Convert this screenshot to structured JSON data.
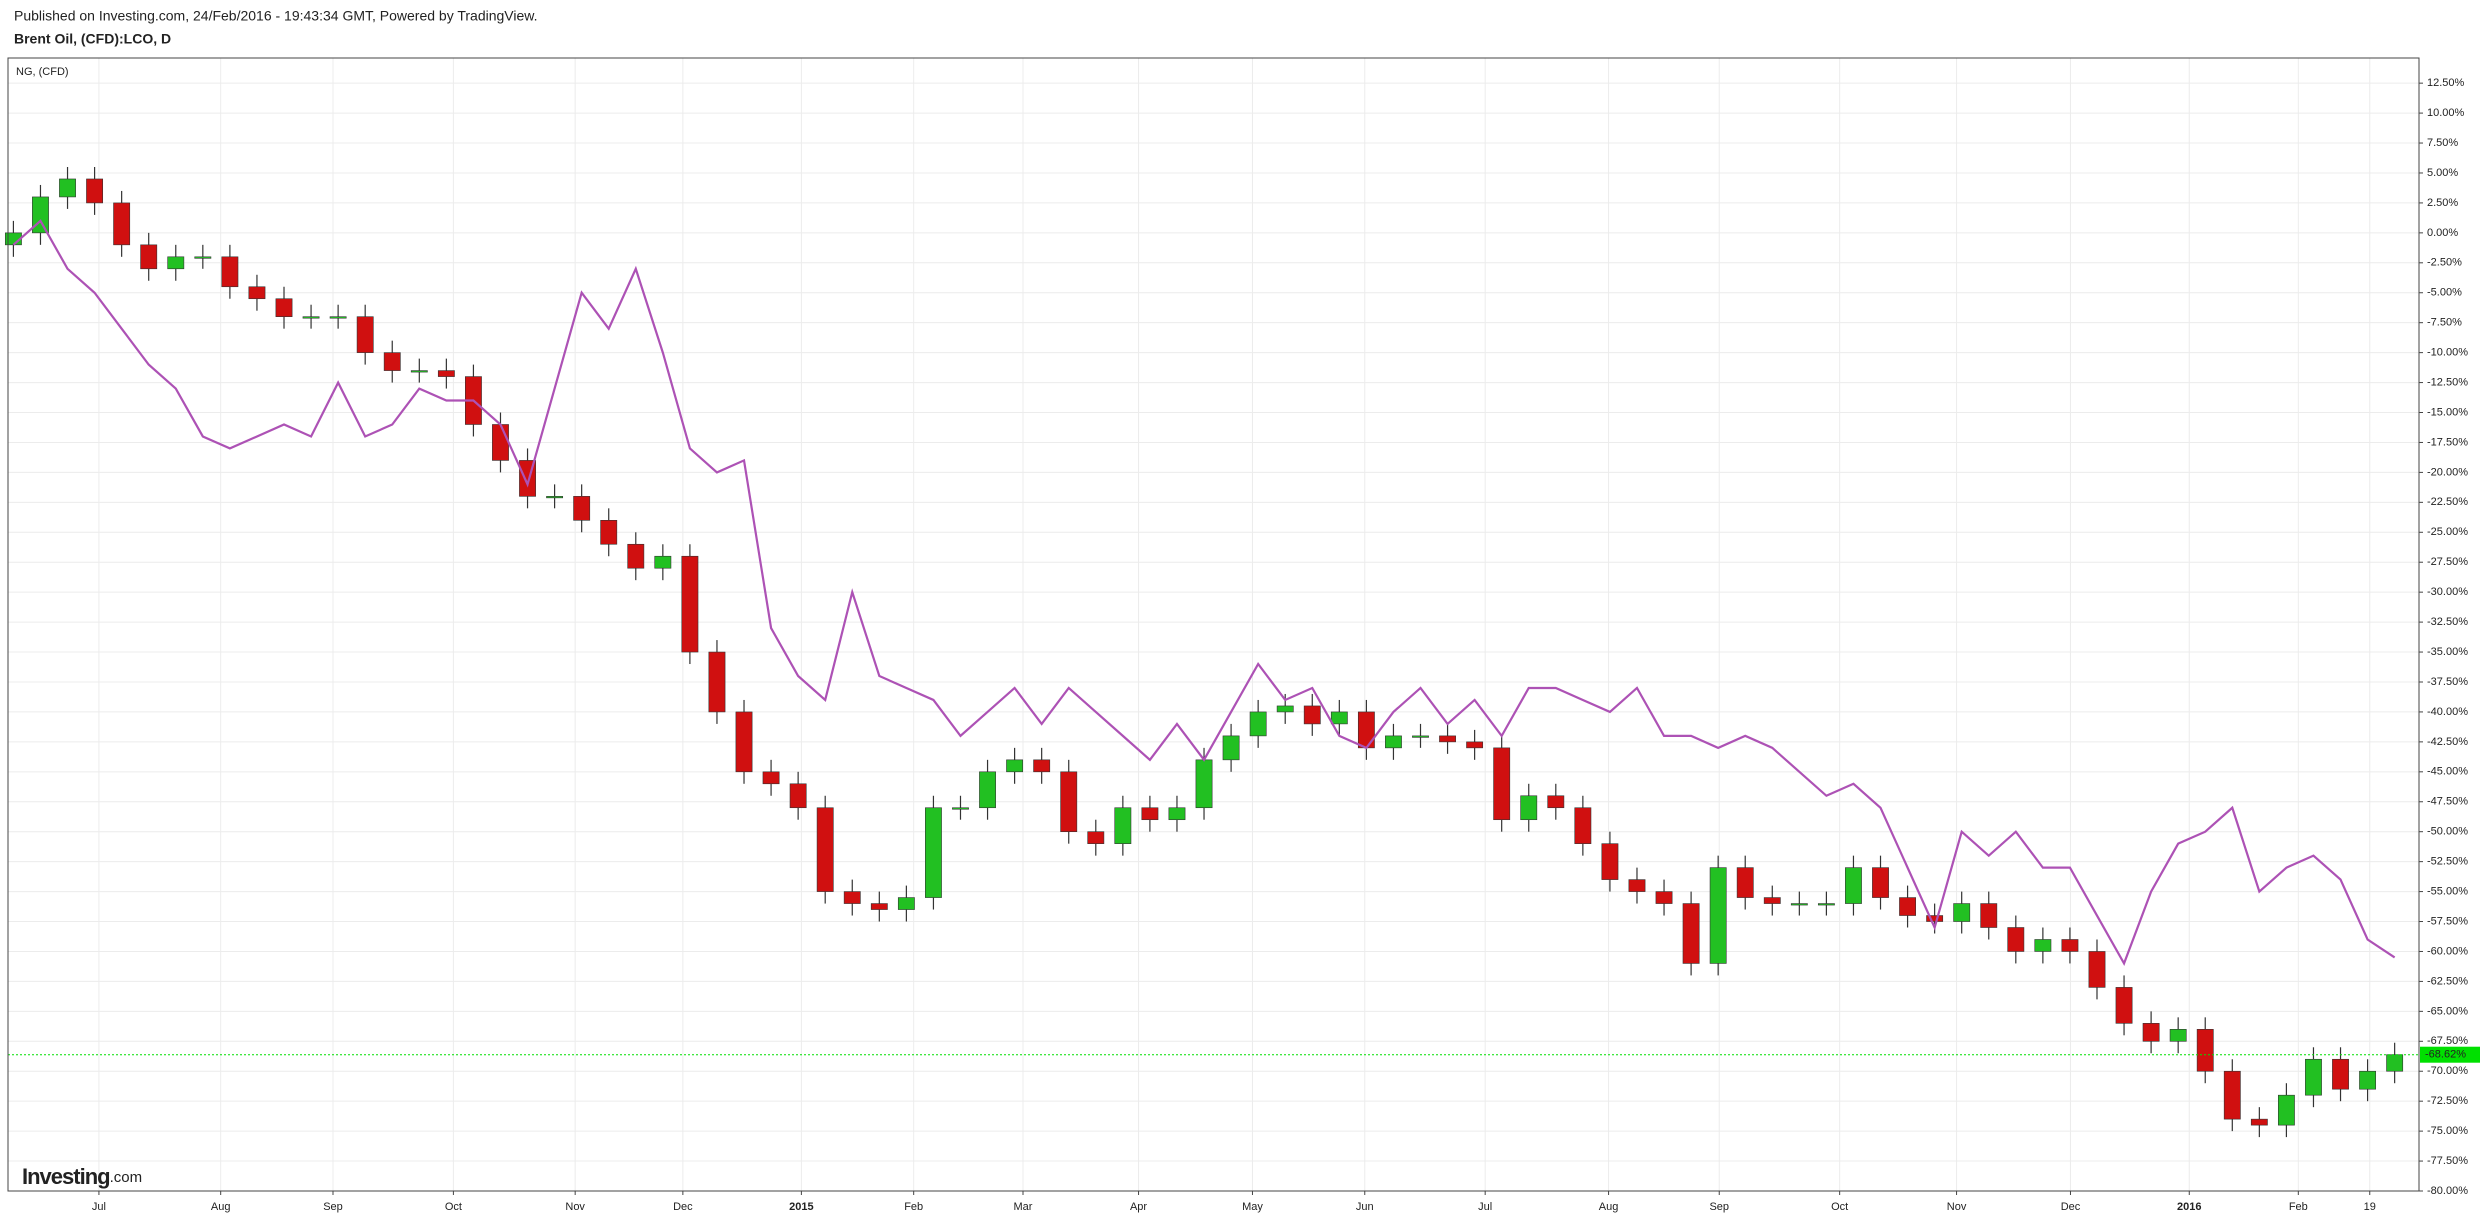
{
  "chart_data": {
    "type": "candlestick",
    "publisher_note": "Published on Investing.com, 24/Feb/2016 - 19:43:34 GMT, Powered by TradingView.",
    "logo_brand": "Investing",
    "logo_suffix": ".com",
    "x": [
      0,
      1,
      2,
      3,
      4,
      5,
      6,
      7,
      8,
      9,
      10,
      11,
      12,
      13,
      14,
      15,
      16,
      17,
      18,
      19,
      20,
      21,
      22,
      23,
      24,
      25,
      26,
      27,
      28,
      29,
      30,
      31,
      32,
      33,
      34,
      35,
      36,
      37,
      38,
      39,
      40,
      41,
      42,
      43,
      44,
      45,
      46,
      47,
      48,
      49,
      50,
      51,
      52,
      53,
      54,
      55,
      56,
      57,
      58,
      59,
      60,
      61,
      62,
      63,
      64,
      65,
      66,
      67,
      68,
      69,
      70,
      71,
      72,
      73,
      74,
      75,
      76,
      77,
      78,
      79,
      80,
      81,
      82,
      83,
      84,
      85,
      86,
      87,
      88
    ],
    "xlim": [
      -0.2,
      88.9
    ],
    "xticks": [
      {
        "value": 3.16,
        "label": "Jul"
      },
      {
        "value": 7.66,
        "label": "Aug"
      },
      {
        "value": 11.81,
        "label": "Sep"
      },
      {
        "value": 16.26,
        "label": "Oct"
      },
      {
        "value": 20.76,
        "label": "Nov"
      },
      {
        "value": 24.74,
        "label": "Dec"
      },
      {
        "value": 29.12,
        "label": "2015"
      },
      {
        "value": 33.27,
        "label": "Feb"
      },
      {
        "value": 37.31,
        "label": "Mar"
      },
      {
        "value": 41.58,
        "label": "Apr"
      },
      {
        "value": 45.79,
        "label": "May"
      },
      {
        "value": 49.94,
        "label": "Jun"
      },
      {
        "value": 54.39,
        "label": "Jul"
      },
      {
        "value": 58.95,
        "label": "Aug"
      },
      {
        "value": 63.04,
        "label": "Sep"
      },
      {
        "value": 67.49,
        "label": "Oct"
      },
      {
        "value": 71.81,
        "label": "Nov"
      },
      {
        "value": 76.02,
        "label": "Dec"
      },
      {
        "value": 80.41,
        "label": "2016"
      },
      {
        "value": 84.44,
        "label": "Feb"
      },
      {
        "value": 87.08,
        "label": "19"
      }
    ],
    "ylim": [
      -80,
      14.6
    ],
    "yticks": [
      {
        "value": 12.5,
        "label": "12.50%"
      },
      {
        "value": 10,
        "label": "10.00%"
      },
      {
        "value": 7.5,
        "label": "7.50%"
      },
      {
        "value": 5,
        "label": "5.00%"
      },
      {
        "value": 2.5,
        "label": "2.50%"
      },
      {
        "value": 0,
        "label": "0.00%"
      },
      {
        "value": -2.5,
        "label": "-2.50%"
      },
      {
        "value": -5,
        "label": "-5.00%"
      },
      {
        "value": -7.5,
        "label": "-7.50%"
      },
      {
        "value": -10,
        "label": "-10.00%"
      },
      {
        "value": -12.5,
        "label": "-12.50%"
      },
      {
        "value": -15,
        "label": "-15.00%"
      },
      {
        "value": -17.5,
        "label": "-17.50%"
      },
      {
        "value": -20,
        "label": "-20.00%"
      },
      {
        "value": -22.5,
        "label": "-22.50%"
      },
      {
        "value": -25,
        "label": "-25.00%"
      },
      {
        "value": -27.5,
        "label": "-27.50%"
      },
      {
        "value": -30,
        "label": "-30.00%"
      },
      {
        "value": -32.5,
        "label": "-32.50%"
      },
      {
        "value": -35,
        "label": "-35.00%"
      },
      {
        "value": -37.5,
        "label": "-37.50%"
      },
      {
        "value": -40,
        "label": "-40.00%"
      },
      {
        "value": -42.5,
        "label": "-42.50%"
      },
      {
        "value": -45,
        "label": "-45.00%"
      },
      {
        "value": -47.5,
        "label": "-47.50%"
      },
      {
        "value": -50,
        "label": "-50.00%"
      },
      {
        "value": -52.5,
        "label": "-52.50%"
      },
      {
        "value": -55,
        "label": "-55.00%"
      },
      {
        "value": -57.5,
        "label": "-57.50%"
      },
      {
        "value": -60,
        "label": "-60.00%"
      },
      {
        "value": -62.5,
        "label": "-62.50%"
      },
      {
        "value": -65,
        "label": "-65.00%"
      },
      {
        "value": -67.5,
        "label": "-67.50%"
      },
      {
        "value": -70,
        "label": "-70.00%"
      },
      {
        "value": -72.5,
        "label": "-72.50%"
      },
      {
        "value": -75,
        "label": "-75.00%"
      },
      {
        "value": -77.5,
        "label": "-77.50%"
      },
      {
        "value": -80,
        "label": "-80.00%"
      }
    ],
    "grid": true,
    "last_value": {
      "value": -68.62,
      "label": "-68.62%",
      "color": "#00e000"
    },
    "series": [
      {
        "name": "Brent Oil, (CFD):LCO, D",
        "type": "candlestick",
        "up_color": "#22c022",
        "down_color": "#d01010",
        "open": [
          -1,
          0,
          3,
          4.5,
          2.5,
          -1,
          -3,
          -2,
          -2,
          -4.5,
          -5.5,
          -7,
          -7,
          -7,
          -10,
          -11.5,
          -11.5,
          -12,
          -16,
          -19,
          -22,
          -22,
          -24,
          -26,
          -28,
          -27,
          -35,
          -40,
          -45,
          -46,
          -48,
          -55,
          -56,
          -56.5,
          -55.5,
          -48,
          -48,
          -45,
          -44,
          -45,
          -50,
          -51,
          -48,
          -49,
          -48,
          -44,
          -42,
          -40,
          -39.5,
          -41,
          -40,
          -43,
          -42,
          -42,
          -42.5,
          -43,
          -49,
          -47,
          -48,
          -51,
          -54,
          -55,
          -56,
          -61,
          -53,
          -55.5,
          -56,
          -56,
          -56,
          -53,
          -55.5,
          -57,
          -57.5,
          -56,
          -58,
          -60,
          -59,
          -60,
          -63,
          -66,
          -67.5,
          -66.5,
          -70,
          -74,
          -74.5,
          -72,
          -69,
          -71.5,
          -70
        ],
        "high": [
          1,
          4,
          5.5,
          5.5,
          3.5,
          0,
          -1,
          -1,
          -1,
          -3.5,
          -4.5,
          -6,
          -6,
          -6,
          -9,
          -10.5,
          -10.5,
          -11,
          -15,
          -18,
          -21,
          -21,
          -23,
          -25,
          -26,
          -26,
          -34,
          -39,
          -44,
          -45,
          -47,
          -54,
          -55,
          -54.5,
          -47,
          -47,
          -44,
          -43,
          -43,
          -44,
          -49,
          -47,
          -47,
          -47,
          -43,
          -41,
          -39,
          -38.5,
          -38.5,
          -39,
          -39,
          -41,
          -41,
          -41,
          -41.5,
          -42,
          -46,
          -46,
          -47,
          -50,
          -53,
          -54,
          -55,
          -52,
          -52,
          -54.5,
          -55,
          -55,
          -52,
          -52,
          -54.5,
          -56,
          -55,
          -55,
          -57,
          -58,
          -58,
          -59,
          -62,
          -65,
          -65.5,
          -65.5,
          -69,
          -73,
          -71,
          -68,
          -68,
          -69,
          -67.62
        ],
        "low": [
          -2,
          -1,
          2,
          1.5,
          -2,
          -4,
          -4,
          -3,
          -5.5,
          -6.5,
          -8,
          -8,
          -8,
          -11,
          -12.5,
          -12.5,
          -13,
          -17,
          -20,
          -23,
          -23,
          -25,
          -27,
          -29,
          -29,
          -36,
          -41,
          -46,
          -47,
          -49,
          -56,
          -57,
          -57.5,
          -57.5,
          -56.5,
          -49,
          -49,
          -46,
          -46,
          -51,
          -52,
          -52,
          -50,
          -50,
          -49,
          -45,
          -43,
          -41,
          -42,
          -42,
          -44,
          -44,
          -43,
          -43.5,
          -44,
          -50,
          -50,
          -49,
          -52,
          -55,
          -56,
          -57,
          -62,
          -62,
          -56.5,
          -57,
          -57,
          -57,
          -57,
          -56.5,
          -58,
          -58.5,
          -58.5,
          -59,
          -61,
          -61,
          -61,
          -64,
          -67,
          -68.5,
          -68.5,
          -71,
          -75,
          -75.5,
          -75.5,
          -73,
          -72.5,
          -72.5,
          -71
        ],
        "close": [
          0,
          3,
          4.5,
          2.5,
          -1,
          -3,
          -2,
          -2,
          -4.5,
          -5.5,
          -7,
          -7,
          -7,
          -10,
          -11.5,
          -11.5,
          -12,
          -16,
          -19,
          -22,
          -22,
          -24,
          -26,
          -28,
          -27,
          -35,
          -40,
          -45,
          -46,
          -48,
          -55,
          -56,
          -56.5,
          -55.5,
          -48,
          -48,
          -45,
          -44,
          -45,
          -50,
          -51,
          -48,
          -49,
          -48,
          -44,
          -42,
          -40,
          -39.5,
          -41,
          -40,
          -43,
          -42,
          -42,
          -42.5,
          -43,
          -49,
          -47,
          -48,
          -51,
          -54,
          -55,
          -56,
          -61,
          -53,
          -55.5,
          -56,
          -56,
          -56,
          -53,
          -55.5,
          -57,
          -57.5,
          -56,
          -58,
          -60,
          -59,
          -60,
          -63,
          -66,
          -67.5,
          -66.5,
          -70,
          -74,
          -74.5,
          -72,
          -69,
          -71.5,
          -70,
          -68.62
        ]
      },
      {
        "name": "NG,  (CFD)",
        "type": "line",
        "color": "#ad52b5",
        "values": [
          -1,
          1,
          -3,
          -5,
          -8,
          -11,
          -13,
          -17,
          -18,
          -17,
          -16,
          -17,
          -12.5,
          -17,
          -16,
          -13,
          -14,
          -14,
          -16,
          -21,
          -13,
          -5,
          -8,
          -3,
          -10,
          -18,
          -20,
          -19,
          -33,
          -37,
          -39,
          -30,
          -37,
          -38,
          -39,
          -42,
          -40,
          -38,
          -41,
          -38,
          -40,
          -42,
          -44,
          -41,
          -44,
          -40,
          -36,
          -39,
          -38,
          -42,
          -43,
          -40,
          -38,
          -41,
          -39,
          -42,
          -38,
          -38,
          -39,
          -40,
          -38,
          -42,
          -42,
          -43,
          -42,
          -43,
          -45,
          -47,
          -46,
          -48,
          -53,
          -58,
          -50,
          -52,
          -50,
          -53,
          -53,
          -57,
          -61,
          -55,
          -51,
          -50,
          -48,
          -55,
          -53,
          -52,
          -54,
          -59,
          -60.5
        ]
      }
    ]
  }
}
